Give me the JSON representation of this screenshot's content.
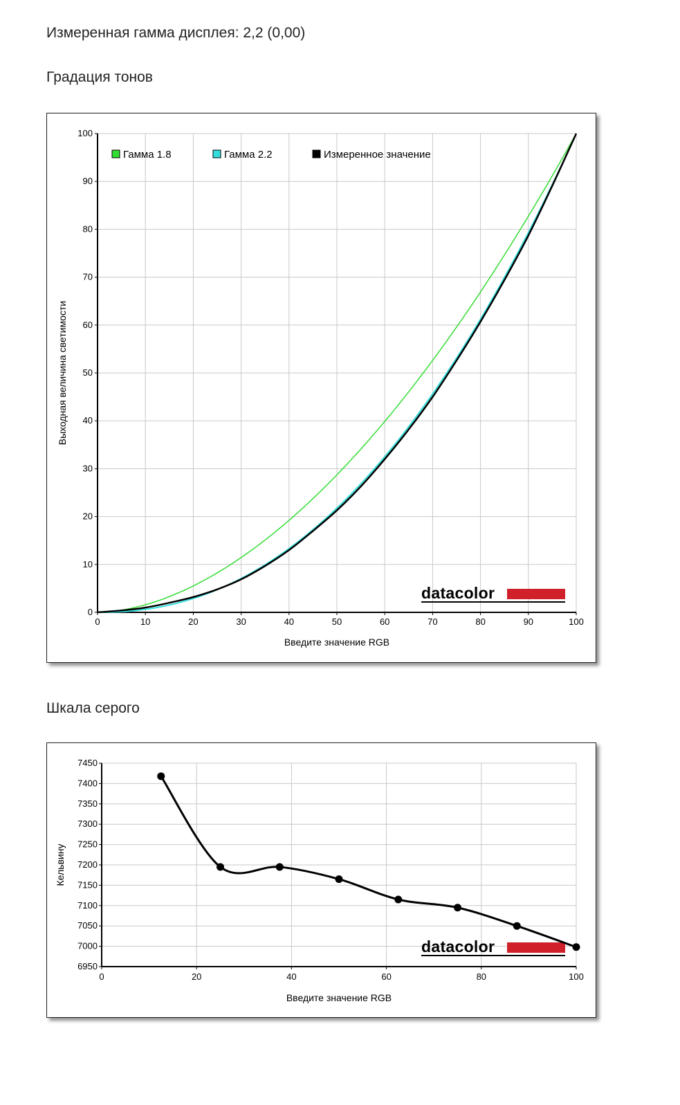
{
  "header": {
    "measured_gamma": "Измеренная гамма дисплея: 2,2 (0,00)",
    "tone_title": "Градация тонов",
    "gray_title": "Шкала серого"
  },
  "logo_text": "datacolor",
  "colors": {
    "gamma18": "#33dd33",
    "gamma22": "#33dddd",
    "measured": "#000000",
    "logo_red": "#d0202a",
    "grid": "#c8c8c8"
  },
  "chart_data": [
    {
      "type": "line",
      "xlabel": "Введите значение RGB",
      "ylabel": "Выходная величина светимости",
      "xlim": [
        0,
        100
      ],
      "ylim": [
        0,
        100
      ],
      "xticks": [
        0,
        10,
        20,
        30,
        40,
        50,
        60,
        70,
        80,
        90,
        100
      ],
      "yticks": [
        0,
        10,
        20,
        30,
        40,
        50,
        60,
        70,
        80,
        90,
        100
      ],
      "grid": true,
      "legend": "top-left",
      "series": [
        {
          "name": "Гамма 1.8",
          "color": "#33dd33",
          "gamma": 1.8
        },
        {
          "name": "Гамма 2.2",
          "color": "#33dddd",
          "gamma": 2.2
        },
        {
          "name": "Измеренное значение",
          "color": "#000000",
          "x": [
            0,
            5,
            10,
            15,
            20,
            25,
            30,
            35,
            40,
            45,
            50,
            55,
            60,
            65,
            70,
            75,
            80,
            85,
            90,
            95,
            100
          ],
          "y": [
            0,
            0.4,
            1.0,
            2.0,
            3.2,
            4.8,
            6.9,
            9.7,
            13.0,
            17.0,
            21.3,
            26.3,
            32.0,
            38.2,
            45.0,
            52.6,
            60.7,
            69.4,
            78.7,
            89.1,
            100
          ]
        }
      ]
    },
    {
      "type": "line",
      "xlabel": "Введите значение RGB",
      "ylabel": "Кельвину",
      "xlim": [
        0,
        100
      ],
      "ylim": [
        6950,
        7450
      ],
      "xticks": [
        0,
        20,
        40,
        60,
        80,
        100
      ],
      "yticks": [
        6950,
        7000,
        7050,
        7100,
        7150,
        7200,
        7250,
        7300,
        7350,
        7400,
        7450
      ],
      "grid": true,
      "series": [
        {
          "color": "#000000",
          "x": [
            12.5,
            25,
            37.5,
            50,
            62.5,
            75,
            87.5,
            100
          ],
          "y": [
            7418,
            7195,
            7195,
            7165,
            7115,
            7095,
            7050,
            6998
          ]
        }
      ]
    }
  ]
}
